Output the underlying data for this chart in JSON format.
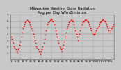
{
  "title": "Milwaukee Weather Solar Radiation",
  "subtitle": "Avg per Day W/m2/minute",
  "dot_color": "#ff0000",
  "bg_color": "#c8c8c8",
  "plot_bg_color": "#c8c8c8",
  "grid_color": "#888888",
  "ylim": [
    0,
    7
  ],
  "xlim": [
    0,
    131
  ],
  "yticks": [
    1,
    2,
    3,
    4,
    5,
    6,
    7
  ],
  "ytick_labels": [
    "1",
    "2",
    "3",
    "4",
    "5",
    "6",
    "7"
  ],
  "vgrid_positions": [
    13,
    26,
    39,
    52,
    65,
    78,
    91,
    104,
    117,
    130
  ],
  "dot_size": 1.5,
  "title_fontsize": 3.8,
  "tick_fontsize": 2.8,
  "x_values": [
    1,
    2,
    3,
    4,
    5,
    6,
    7,
    8,
    9,
    10,
    11,
    12,
    13,
    14,
    15,
    16,
    17,
    18,
    19,
    20,
    21,
    22,
    23,
    24,
    25,
    26,
    27,
    28,
    29,
    30,
    31,
    32,
    33,
    34,
    35,
    36,
    37,
    38,
    39,
    40,
    41,
    42,
    43,
    44,
    45,
    46,
    47,
    48,
    49,
    50,
    51,
    52,
    53,
    54,
    55,
    56,
    57,
    58,
    59,
    60,
    61,
    62,
    63,
    64,
    65,
    66,
    67,
    68,
    69,
    70,
    71,
    72,
    73,
    74,
    75,
    76,
    77,
    78,
    79,
    80,
    81,
    82,
    83,
    84,
    85,
    86,
    87,
    88,
    89,
    90,
    91,
    92,
    93,
    94,
    95,
    96,
    97,
    98,
    99,
    100,
    101,
    102,
    103,
    104,
    105,
    106,
    107,
    108,
    109,
    110,
    111,
    112,
    113,
    114,
    115,
    116,
    117,
    118,
    119,
    120,
    121,
    122,
    123,
    124,
    125,
    126,
    127,
    128,
    129,
    130
  ],
  "y_values": [
    3.5,
    3.2,
    2.8,
    2.5,
    2.0,
    1.8,
    1.5,
    1.2,
    1.0,
    1.5,
    1.8,
    2.2,
    2.8,
    3.5,
    4.2,
    4.8,
    5.2,
    5.5,
    5.8,
    6.0,
    6.2,
    6.1,
    6.0,
    5.8,
    5.5,
    5.2,
    4.8,
    4.5,
    4.0,
    3.5,
    3.0,
    2.5,
    2.0,
    1.8,
    1.5,
    1.2,
    1.0,
    0.8,
    1.2,
    1.5,
    2.0,
    2.5,
    3.2,
    3.8,
    4.5,
    5.0,
    5.5,
    5.8,
    6.0,
    6.2,
    6.4,
    6.3,
    6.1,
    5.9,
    5.5,
    5.0,
    4.5,
    4.0,
    3.5,
    3.0,
    2.5,
    2.0,
    1.8,
    1.5,
    1.2,
    1.8,
    2.2,
    2.8,
    3.5,
    4.2,
    4.8,
    5.2,
    5.5,
    5.8,
    6.0,
    6.2,
    6.3,
    6.1,
    5.9,
    5.5,
    5.0,
    4.5,
    4.0,
    3.5,
    3.0,
    3.5,
    4.0,
    4.5,
    5.0,
    5.5,
    5.8,
    6.0,
    6.1,
    6.2,
    6.3,
    6.2,
    6.0,
    5.8,
    5.5,
    5.2,
    4.8,
    4.5,
    4.2,
    4.0,
    3.8,
    4.0,
    4.2,
    4.5,
    4.8,
    5.0,
    5.2,
    5.5,
    5.8,
    6.0,
    6.1,
    6.2,
    6.3,
    6.1,
    5.9,
    5.7,
    5.5,
    5.2,
    4.8,
    4.5,
    4.2,
    4.5,
    4.8,
    5.0,
    5.2,
    5.5
  ]
}
